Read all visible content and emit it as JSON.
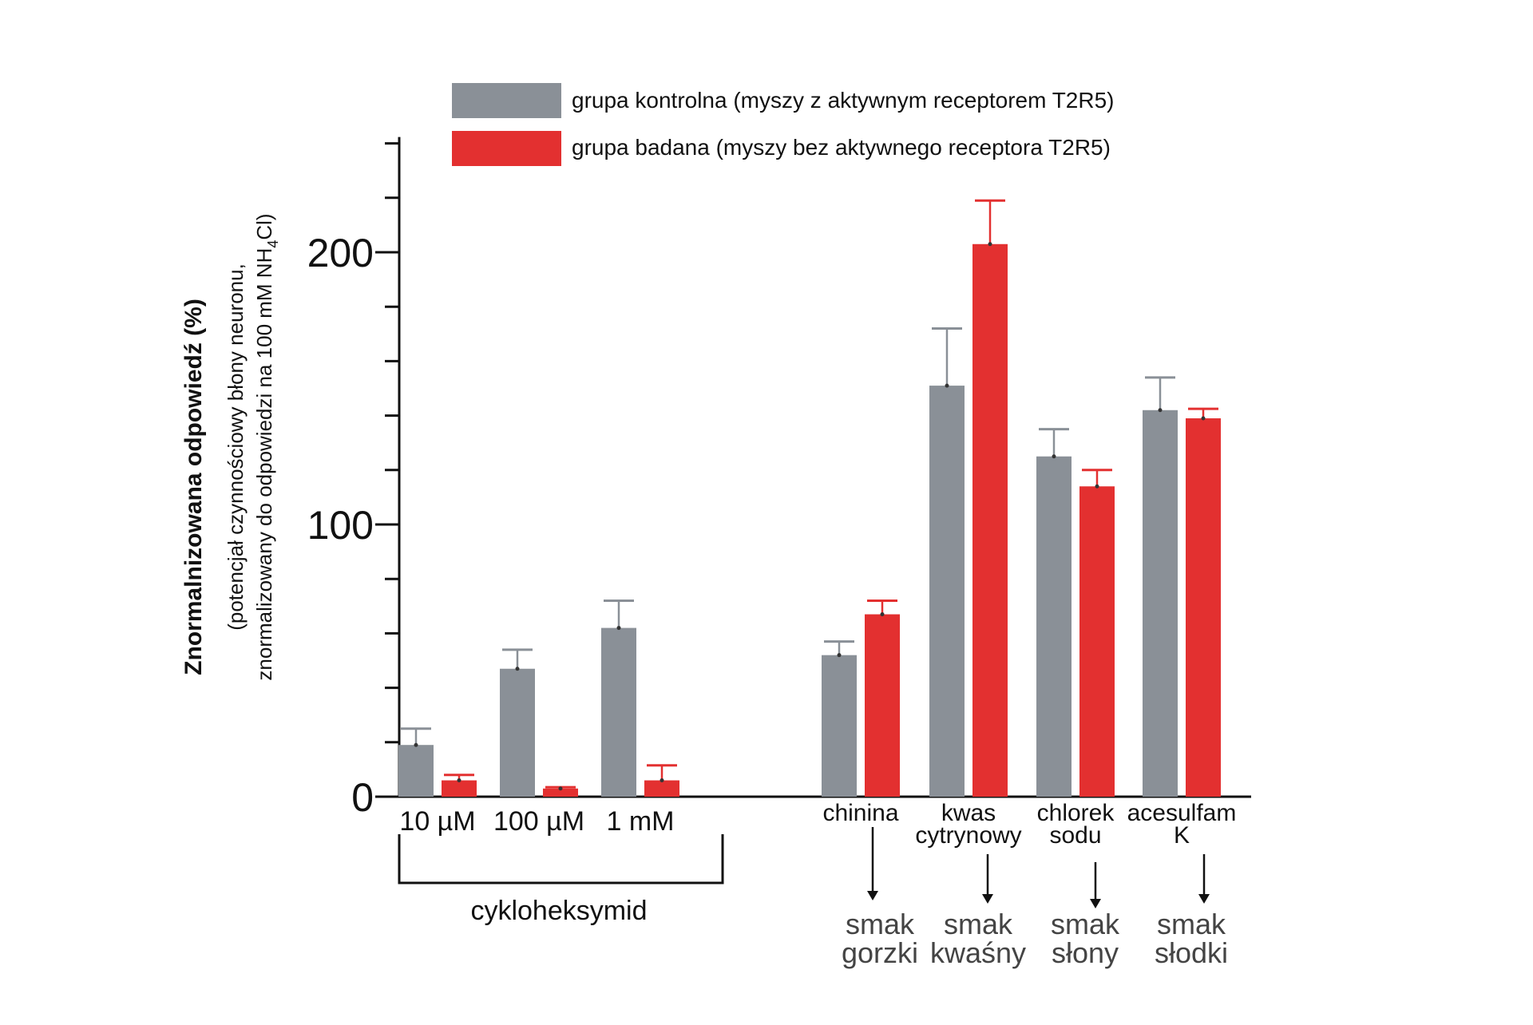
{
  "chart_data": {
    "type": "bar",
    "ylim": [
      0,
      240
    ],
    "yticks_labeled": [
      "0",
      "100",
      "200"
    ],
    "ylabel": {
      "main": "Znormalnizowana odpowiedź (%)",
      "sub_line1": "(potencjał czynnościowy błony neuronu,",
      "sub_line2": "znormalizowany do odpowiedzi na 100 mM NH",
      "sub_sub": "4",
      "sub_end": "Cl)"
    },
    "legend": {
      "placement": "top",
      "items": [
        {
          "label": "grupa kontrolna (myszy z aktywnym receptorem T2R5)",
          "color": "#8a9097"
        },
        {
          "label": "grupa badana (myszy bez aktywnego receptora T2R5)",
          "color": "#e33030"
        }
      ]
    },
    "categories": [
      "10 µM",
      "100 µM",
      "1 mM",
      "chinina",
      "kwas cytrynowy",
      "chlorek sodu",
      "acesulfam K"
    ],
    "category_lines": [
      [
        "10 µM"
      ],
      [
        "100 µM"
      ],
      [
        "1 mM"
      ],
      [
        "chinina"
      ],
      [
        "kwas",
        "cytrynowy"
      ],
      [
        "chlorek",
        "sodu"
      ],
      [
        "acesulfam",
        "K"
      ]
    ],
    "series": [
      {
        "name": "grupa kontrolna (myszy z aktywnym receptorem T2R5)",
        "color": "#8a9097",
        "values": [
          19,
          47,
          62,
          52,
          151,
          125,
          142
        ],
        "errors": [
          6,
          7,
          10,
          5,
          21,
          10,
          12
        ]
      },
      {
        "name": "grupa badana (myszy bez aktywnego receptora T2R5)",
        "color": "#e33030",
        "values": [
          6,
          3,
          6,
          67,
          203,
          114,
          139
        ],
        "errors": [
          2,
          0.5,
          5.5,
          5,
          16,
          6,
          3.5
        ]
      }
    ],
    "group_bracket_label": "cykloheksymid",
    "tastes": [
      [
        "smak",
        "gorzki"
      ],
      [
        "smak",
        "kwaśny"
      ],
      [
        "smak",
        "słony"
      ],
      [
        "smak",
        "słodki"
      ]
    ]
  }
}
